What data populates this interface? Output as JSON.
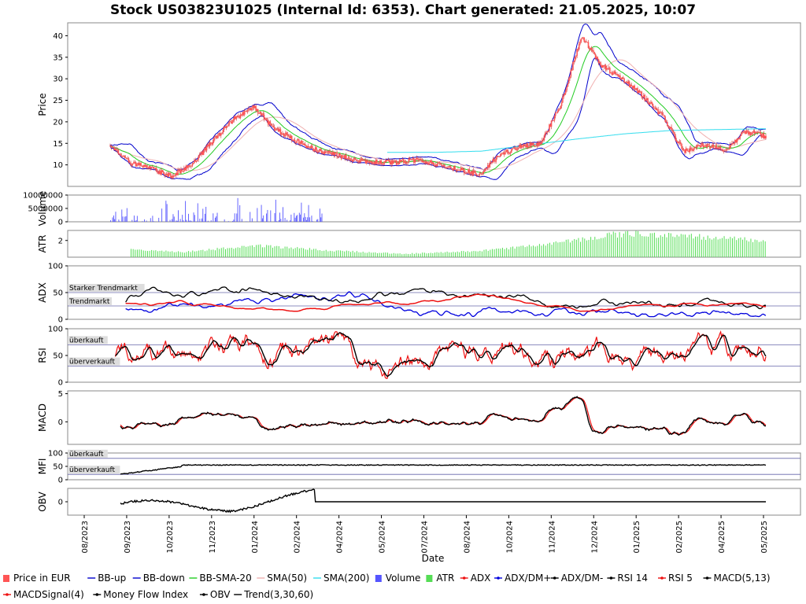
{
  "chart_data": {
    "type": "line",
    "title": "Stock US03823U1025 (Internal Id: 6353). Chart generated: 21.05.2025, 10:07",
    "xlabel": "Date",
    "x_ticks": [
      "08/2023",
      "09/2023",
      "10/2023",
      "11/2023",
      "01/2024",
      "02/2024",
      "04/2024",
      "05/2024",
      "07/2024",
      "08/2024",
      "10/2024",
      "11/2024",
      "12/2024",
      "01/2025",
      "02/2025",
      "04/2025",
      "05/2025"
    ],
    "panels": [
      {
        "id": "price",
        "ylabel": "Price",
        "ylim": [
          5,
          43
        ],
        "yticks": [
          "10",
          "15",
          "20",
          "25",
          "30",
          "35",
          "40"
        ],
        "annotations": []
      },
      {
        "id": "volume",
        "ylabel": "Volume",
        "ylim": [
          0,
          10000000
        ],
        "yticks": [
          "0",
          "5000000",
          "10000000"
        ],
        "annotations": []
      },
      {
        "id": "atr",
        "ylabel": "ATR",
        "ylim": [
          0,
          3.2
        ],
        "yticks": [
          "2"
        ],
        "annotations": []
      },
      {
        "id": "adx",
        "ylabel": "ADX",
        "ylim": [
          0,
          100
        ],
        "yticks": [
          "0",
          "50",
          "100"
        ],
        "annotations": [
          {
            "text": "Starker Trendmarkt",
            "y": 50
          },
          {
            "text": "Trendmarkt",
            "y": 25
          }
        ]
      },
      {
        "id": "rsi",
        "ylabel": "RSI",
        "ylim": [
          0,
          100
        ],
        "yticks": [
          "0",
          "50",
          "100"
        ],
        "annotations": [
          {
            "text": "überkauft",
            "y": 70
          },
          {
            "text": "überverkauft",
            "y": 30
          }
        ]
      },
      {
        "id": "macd",
        "ylabel": "MACD",
        "ylim": [
          -4,
          5.5
        ],
        "yticks": [
          "0",
          "5"
        ],
        "annotations": []
      },
      {
        "id": "mfi",
        "ylabel": "MFI",
        "ylim": [
          0,
          100
        ],
        "yticks": [
          "0",
          "50",
          "100"
        ],
        "annotations": [
          {
            "text": "überkauft",
            "y": 80
          },
          {
            "text": "überverkauft",
            "y": 20
          }
        ]
      },
      {
        "id": "obv",
        "ylabel": "OBV",
        "ylim": [
          -1,
          1
        ],
        "yticks": [
          "0"
        ],
        "annotations": []
      }
    ],
    "series": [
      {
        "name": "Price in EUR",
        "color": "#ff5555",
        "type": "candles",
        "date_range": [
          "2023-08-25",
          "2025-05-20"
        ],
        "approx_close": [
          14.2,
          10.5,
          9.2,
          7.3,
          10.3,
          15.5,
          20.5,
          23.5,
          18.5,
          15.8,
          13.6,
          12.4,
          11.0,
          10.6,
          10.6,
          11.1,
          10.1,
          8.9,
          7.8,
          12.2,
          14.3,
          14.8,
          24.0,
          40.0,
          33.0,
          30.0,
          26.0,
          21.0,
          13.0,
          14.8,
          13.2,
          17.8,
          16.6
        ]
      },
      {
        "name": "BB-up",
        "color": "#0000cc"
      },
      {
        "name": "BB-down",
        "color": "#0000cc"
      },
      {
        "name": "BB-SMA-20",
        "color": "#22cc22"
      },
      {
        "name": "SMA(50)",
        "color": "#f0b0b0"
      },
      {
        "name": "SMA(200)",
        "color": "#33ddee",
        "approx_values": [
          12.9,
          12.9,
          13.2,
          14.6,
          16.0,
          17.2,
          18.0,
          18.2,
          18.4
        ]
      },
      {
        "name": "Volume",
        "color": "#5555ff",
        "approx_max": 9500000
      },
      {
        "name": "ATR",
        "color": "#55dd55",
        "approx_values": [
          1.0,
          0.6,
          1.4,
          0.8,
          0.4,
          0.7,
          1.5,
          2.8,
          2.5,
          1.9
        ]
      },
      {
        "name": "ADX",
        "color": "#ee1111"
      },
      {
        "name": "ADX/DM+",
        "color": "#0000dd"
      },
      {
        "name": "ADX/DM-",
        "color": "#000000"
      },
      {
        "name": "RSI 14",
        "color": "#000000"
      },
      {
        "name": "RSI 5",
        "color": "#ee1111"
      },
      {
        "name": "MACD(5,13)",
        "color": "#000000"
      },
      {
        "name": "MACDSignal(4)",
        "color": "#ee1111"
      },
      {
        "name": "Money Flow Index",
        "color": "#000000",
        "approx_level": 55
      },
      {
        "name": "OBV",
        "color": "#000000"
      },
      {
        "name": "Trend(3,30,60)",
        "color": "#000000"
      }
    ]
  }
}
